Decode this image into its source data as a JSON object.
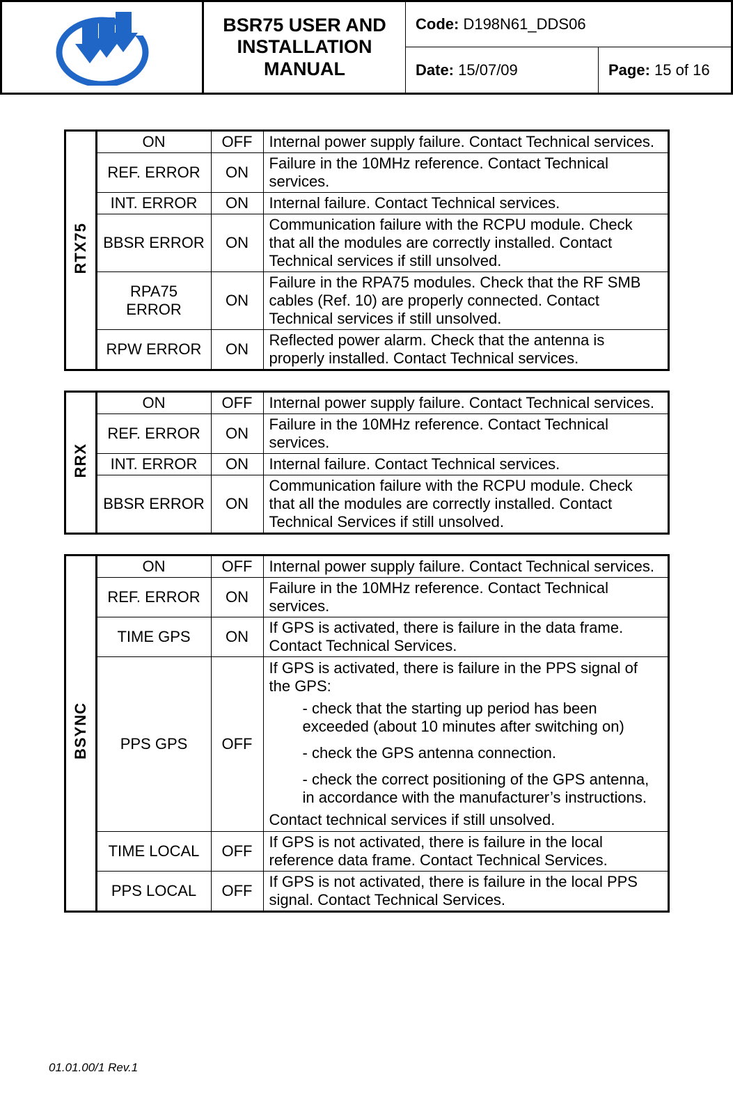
{
  "header": {
    "title": "BSR75 USER AND INSTALLATION MANUAL",
    "code_label": "Code:",
    "code_value": "D198N61_DDS06",
    "date_label": "Date:",
    "date_value": "15/07/09",
    "page_label": "Page:",
    "page_value": "15 of 16"
  },
  "logo": {
    "ring_color": "#1f66c7",
    "arrow_color": "#1f66c7"
  },
  "tables": [
    {
      "group": "RTX75",
      "rows": [
        {
          "c1": "ON",
          "c2": "OFF",
          "desc": "Internal power supply failure. Contact Technical services."
        },
        {
          "c1": "REF. ERROR",
          "c2": "ON",
          "desc": "Failure in the 10MHz reference. Contact Technical services."
        },
        {
          "c1": "INT. ERROR",
          "c2": "ON",
          "desc": "Internal failure. Contact Technical services."
        },
        {
          "c1": "BBSR ERROR",
          "c2": "ON",
          "desc": "Communication failure with the RCPU module. Check that all the modules are correctly installed. Contact Technical services if still unsolved."
        },
        {
          "c1": "RPA75 ERROR",
          "c2": "ON",
          "desc": "Failure in the RPA75 modules. Check that the RF SMB cables (Ref. 10) are properly connected. Contact Technical services if still unsolved."
        },
        {
          "c1": "RPW ERROR",
          "c2": "ON",
          "desc": "Reflected power alarm. Check that the antenna is properly installed. Contact Technical services."
        }
      ]
    },
    {
      "group": "RRX",
      "rows": [
        {
          "c1": "ON",
          "c2": "OFF",
          "desc": "Internal power supply failure. Contact Technical services."
        },
        {
          "c1": "REF. ERROR",
          "c2": "ON",
          "desc": "Failure in the 10MHz reference. Contact Technical services."
        },
        {
          "c1": "INT. ERROR",
          "c2": "ON",
          "desc": "Internal failure. Contact Technical services."
        },
        {
          "c1": "BBSR ERROR",
          "c2": "ON",
          "desc": "Communication failure with the RCPU module. Check that all the modules are correctly installed. Contact Technical Services if still unsolved."
        }
      ]
    },
    {
      "group": "BSYNC",
      "rows": [
        {
          "c1": "ON",
          "c2": "OFF",
          "desc": "Internal power supply failure. Contact Technical services."
        },
        {
          "c1": "REF. ERROR",
          "c2": "ON",
          "desc": "Failure in the 10MHz reference. Contact Technical services."
        },
        {
          "c1": "TIME GPS",
          "c2": "ON",
          "desc": "If GPS is activated, there is failure in the data frame. Contact Technical Services."
        },
        {
          "c1": "PPS GPS",
          "c2": "OFF",
          "desc_block": {
            "lead": "If GPS is activated, there is failure in the PPS signal of the GPS:",
            "items": [
              "- check that the starting up period has been exceeded (about 10 minutes after switching on)",
              "- check the GPS antenna connection.",
              "- check the correct positioning of the GPS antenna, in accordance with the manufacturer’s instructions."
            ],
            "tail": "Contact technical services if still unsolved."
          }
        },
        {
          "c1": "TIME LOCAL",
          "c2": "OFF",
          "desc": "If GPS is not activated, there is failure in the local reference data frame. Contact Technical Services."
        },
        {
          "c1": "PPS LOCAL",
          "c2": "OFF",
          "desc": "If GPS is not activated, there is failure in the local PPS signal. Contact Technical Services."
        }
      ]
    }
  ],
  "footer": "01.01.00/1 Rev.1"
}
